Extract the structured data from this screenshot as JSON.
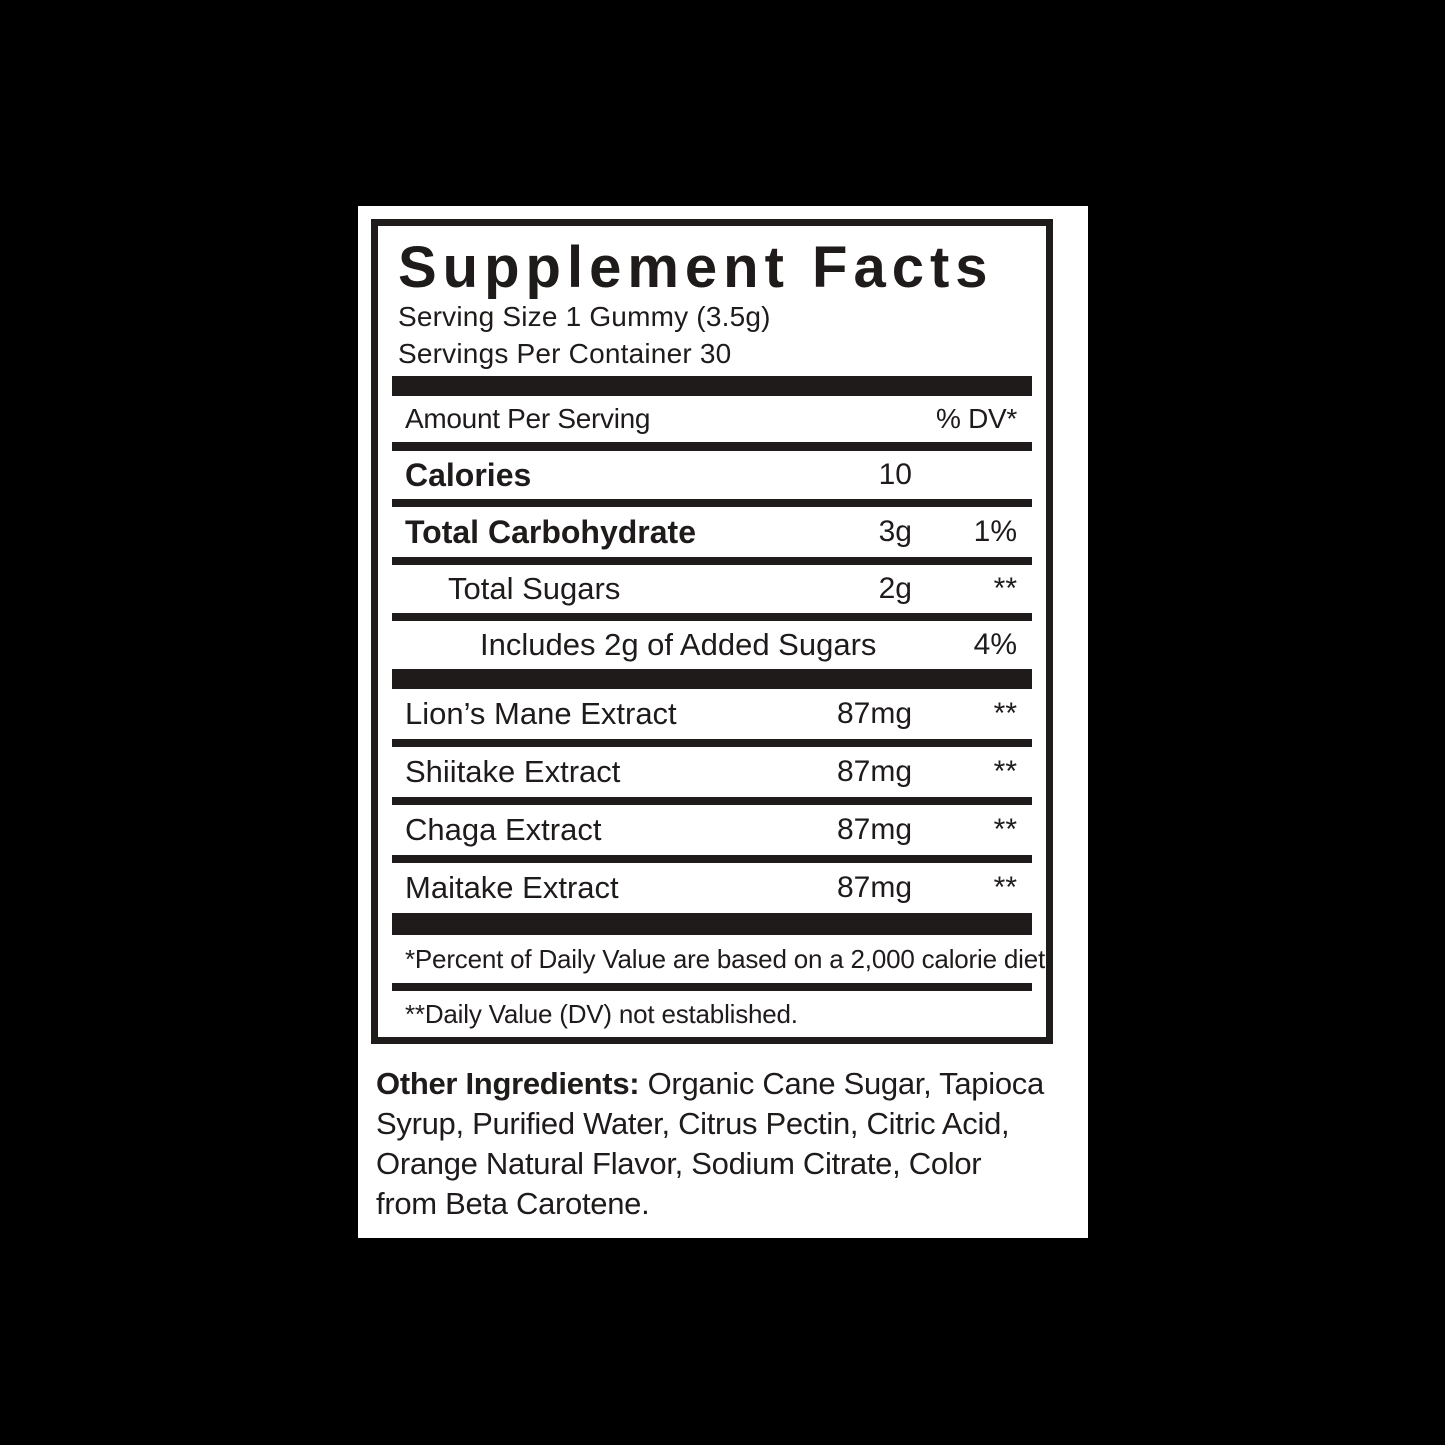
{
  "colors": {
    "background": "#000000",
    "panel": "#ffffff",
    "ink": "#1e1b1a"
  },
  "supplement_facts": {
    "title": "Supplement Facts",
    "serving_size": "Serving Size 1 Gummy (3.5g)",
    "servings_per_container": "Servings Per Container 30",
    "columns": {
      "amount_header": "Amount Per Serving",
      "dv_header": "% DV*"
    },
    "nutrients": [
      {
        "name": "Calories",
        "amount": "10",
        "dv": ""
      },
      {
        "name": "Total Carbohydrate",
        "amount": "3g",
        "dv": "1%"
      },
      {
        "name": "Total Sugars",
        "amount": "2g",
        "dv": "**"
      },
      {
        "name": "Includes 2g of Added Sugars",
        "amount": "",
        "dv": "4%"
      }
    ],
    "ingredients": [
      {
        "name": "Lion’s Mane Extract",
        "amount": "87mg",
        "dv": "**"
      },
      {
        "name": "Shiitake Extract",
        "amount": "87mg",
        "dv": "**"
      },
      {
        "name": "Chaga Extract",
        "amount": "87mg",
        "dv": "**"
      },
      {
        "name": "Maitake Extract",
        "amount": "87mg",
        "dv": "**"
      }
    ],
    "footnotes": {
      "percent_dv": "*Percent of Daily Value are based on a 2,000 calorie diet.",
      "dv_not_established": "**Daily Value (DV) not established."
    }
  },
  "other_ingredients": {
    "label": "Other Ingredients:",
    "line1_rest": " Organic Cane Sugar, Tapioca",
    "line2": "Syrup, Purified Water, Citrus Pectin, Citric Acid,",
    "line3": "Orange Natural Flavor, Sodium Citrate, Color",
    "line4": "from Beta Carotene."
  }
}
